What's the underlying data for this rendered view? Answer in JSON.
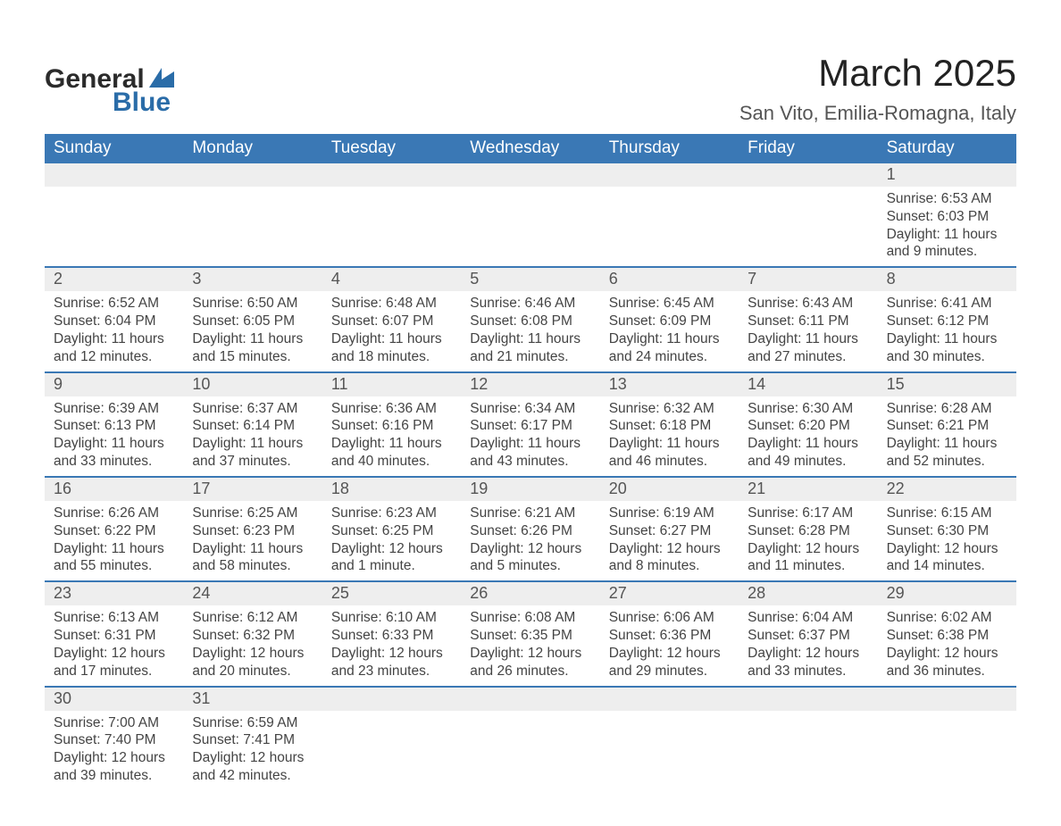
{
  "logo": {
    "word1": "General",
    "word2": "Blue"
  },
  "title": "March 2025",
  "subtitle": "San Vito, Emilia-Romagna, Italy",
  "colors": {
    "header_blue": "#3a78b5",
    "daynum_bg": "#eeeeee",
    "text": "#333333",
    "logo_dark": "#2b2b2b",
    "logo_blue": "#2a6ca8"
  },
  "weekdays": [
    "Sunday",
    "Monday",
    "Tuesday",
    "Wednesday",
    "Thursday",
    "Friday",
    "Saturday"
  ],
  "labels": {
    "sunrise": "Sunrise: ",
    "sunset": "Sunset: ",
    "daylight": "Daylight: "
  },
  "weeks": [
    [
      null,
      null,
      null,
      null,
      null,
      null,
      {
        "n": "1",
        "sunrise": "6:53 AM",
        "sunset": "6:03 PM",
        "daylight": "11 hours and 9 minutes."
      }
    ],
    [
      {
        "n": "2",
        "sunrise": "6:52 AM",
        "sunset": "6:04 PM",
        "daylight": "11 hours and 12 minutes."
      },
      {
        "n": "3",
        "sunrise": "6:50 AM",
        "sunset": "6:05 PM",
        "daylight": "11 hours and 15 minutes."
      },
      {
        "n": "4",
        "sunrise": "6:48 AM",
        "sunset": "6:07 PM",
        "daylight": "11 hours and 18 minutes."
      },
      {
        "n": "5",
        "sunrise": "6:46 AM",
        "sunset": "6:08 PM",
        "daylight": "11 hours and 21 minutes."
      },
      {
        "n": "6",
        "sunrise": "6:45 AM",
        "sunset": "6:09 PM",
        "daylight": "11 hours and 24 minutes."
      },
      {
        "n": "7",
        "sunrise": "6:43 AM",
        "sunset": "6:11 PM",
        "daylight": "11 hours and 27 minutes."
      },
      {
        "n": "8",
        "sunrise": "6:41 AM",
        "sunset": "6:12 PM",
        "daylight": "11 hours and 30 minutes."
      }
    ],
    [
      {
        "n": "9",
        "sunrise": "6:39 AM",
        "sunset": "6:13 PM",
        "daylight": "11 hours and 33 minutes."
      },
      {
        "n": "10",
        "sunrise": "6:37 AM",
        "sunset": "6:14 PM",
        "daylight": "11 hours and 37 minutes."
      },
      {
        "n": "11",
        "sunrise": "6:36 AM",
        "sunset": "6:16 PM",
        "daylight": "11 hours and 40 minutes."
      },
      {
        "n": "12",
        "sunrise": "6:34 AM",
        "sunset": "6:17 PM",
        "daylight": "11 hours and 43 minutes."
      },
      {
        "n": "13",
        "sunrise": "6:32 AM",
        "sunset": "6:18 PM",
        "daylight": "11 hours and 46 minutes."
      },
      {
        "n": "14",
        "sunrise": "6:30 AM",
        "sunset": "6:20 PM",
        "daylight": "11 hours and 49 minutes."
      },
      {
        "n": "15",
        "sunrise": "6:28 AM",
        "sunset": "6:21 PM",
        "daylight": "11 hours and 52 minutes."
      }
    ],
    [
      {
        "n": "16",
        "sunrise": "6:26 AM",
        "sunset": "6:22 PM",
        "daylight": "11 hours and 55 minutes."
      },
      {
        "n": "17",
        "sunrise": "6:25 AM",
        "sunset": "6:23 PM",
        "daylight": "11 hours and 58 minutes."
      },
      {
        "n": "18",
        "sunrise": "6:23 AM",
        "sunset": "6:25 PM",
        "daylight": "12 hours and 1 minute."
      },
      {
        "n": "19",
        "sunrise": "6:21 AM",
        "sunset": "6:26 PM",
        "daylight": "12 hours and 5 minutes."
      },
      {
        "n": "20",
        "sunrise": "6:19 AM",
        "sunset": "6:27 PM",
        "daylight": "12 hours and 8 minutes."
      },
      {
        "n": "21",
        "sunrise": "6:17 AM",
        "sunset": "6:28 PM",
        "daylight": "12 hours and 11 minutes."
      },
      {
        "n": "22",
        "sunrise": "6:15 AM",
        "sunset": "6:30 PM",
        "daylight": "12 hours and 14 minutes."
      }
    ],
    [
      {
        "n": "23",
        "sunrise": "6:13 AM",
        "sunset": "6:31 PM",
        "daylight": "12 hours and 17 minutes."
      },
      {
        "n": "24",
        "sunrise": "6:12 AM",
        "sunset": "6:32 PM",
        "daylight": "12 hours and 20 minutes."
      },
      {
        "n": "25",
        "sunrise": "6:10 AM",
        "sunset": "6:33 PM",
        "daylight": "12 hours and 23 minutes."
      },
      {
        "n": "26",
        "sunrise": "6:08 AM",
        "sunset": "6:35 PM",
        "daylight": "12 hours and 26 minutes."
      },
      {
        "n": "27",
        "sunrise": "6:06 AM",
        "sunset": "6:36 PM",
        "daylight": "12 hours and 29 minutes."
      },
      {
        "n": "28",
        "sunrise": "6:04 AM",
        "sunset": "6:37 PM",
        "daylight": "12 hours and 33 minutes."
      },
      {
        "n": "29",
        "sunrise": "6:02 AM",
        "sunset": "6:38 PM",
        "daylight": "12 hours and 36 minutes."
      }
    ],
    [
      {
        "n": "30",
        "sunrise": "7:00 AM",
        "sunset": "7:40 PM",
        "daylight": "12 hours and 39 minutes."
      },
      {
        "n": "31",
        "sunrise": "6:59 AM",
        "sunset": "7:41 PM",
        "daylight": "12 hours and 42 minutes."
      },
      null,
      null,
      null,
      null,
      null
    ]
  ]
}
